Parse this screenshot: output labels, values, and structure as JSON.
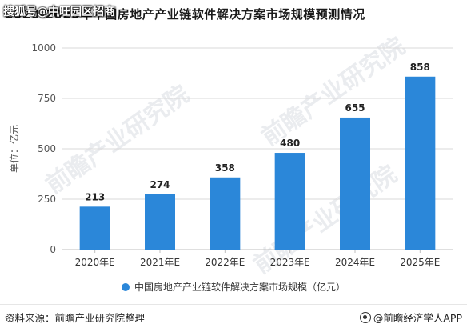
{
  "overlay_text": "搜狐号@中旺园区招商",
  "footer": {
    "source": "资料来源：前瞻产业研究院整理",
    "brand": "@前瞻经济学人APP"
  },
  "watermark_text": "前瞻产业研究院",
  "chart_data": {
    "type": "bar",
    "title": "2020-2025年中国房地产产业链软件解决方案市场规模预测情况",
    "ylabel": "单位：亿元",
    "xlabel": "",
    "categories": [
      "2020年E",
      "2021年E",
      "2022年E",
      "2023年E",
      "2024年E",
      "2025年E"
    ],
    "series": [
      {
        "name": "中国房地产产业链软件解决方案市场规模（亿元）",
        "values": [
          213,
          274,
          358,
          480,
          655,
          858
        ]
      }
    ],
    "ylim": [
      0,
      1000
    ],
    "yticks": [
      0,
      250,
      500,
      750,
      1000
    ],
    "grid": true,
    "legend": "bottom",
    "bar_color": "#2b87d9"
  }
}
